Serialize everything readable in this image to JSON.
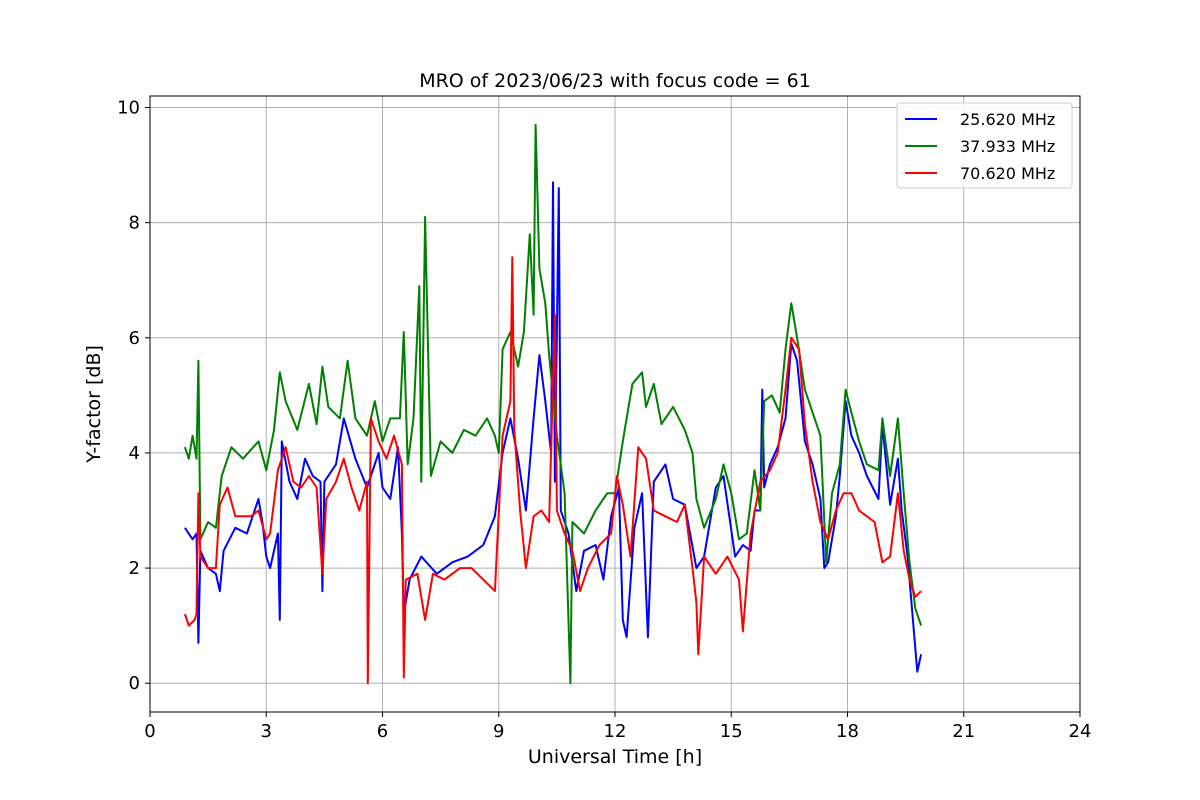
{
  "chart_data": {
    "type": "line",
    "title": "MRO of 2023/06/23 with focus code = 61",
    "xlabel": "Universal Time [h]",
    "ylabel": "Y-factor [dB]",
    "xlim": [
      0,
      24
    ],
    "ylim": [
      -0.5,
      10.2
    ],
    "xticks": [
      0,
      3,
      6,
      9,
      12,
      15,
      18,
      21,
      24
    ],
    "yticks": [
      0,
      2,
      4,
      6,
      8,
      10
    ],
    "grid": true,
    "legend_position": "top-right",
    "series": [
      {
        "name": "25.620 MHz",
        "color": "#0000ff",
        "points": [
          [
            0.9,
            2.7
          ],
          [
            1.1,
            2.5
          ],
          [
            1.2,
            2.6
          ],
          [
            1.25,
            0.7
          ],
          [
            1.3,
            2.3
          ],
          [
            1.5,
            2.0
          ],
          [
            1.7,
            1.9
          ],
          [
            1.8,
            1.6
          ],
          [
            1.9,
            2.3
          ],
          [
            2.2,
            2.7
          ],
          [
            2.5,
            2.6
          ],
          [
            2.8,
            3.2
          ],
          [
            2.9,
            2.8
          ],
          [
            3.0,
            2.2
          ],
          [
            3.1,
            2.0
          ],
          [
            3.3,
            2.6
          ],
          [
            3.35,
            1.1
          ],
          [
            3.4,
            4.2
          ],
          [
            3.6,
            3.5
          ],
          [
            3.8,
            3.2
          ],
          [
            4.0,
            3.9
          ],
          [
            4.2,
            3.6
          ],
          [
            4.4,
            3.5
          ],
          [
            4.45,
            1.6
          ],
          [
            4.5,
            3.5
          ],
          [
            4.8,
            3.8
          ],
          [
            5.0,
            4.6
          ],
          [
            5.3,
            3.9
          ],
          [
            5.6,
            3.4
          ],
          [
            5.9,
            4.0
          ],
          [
            6.0,
            3.4
          ],
          [
            6.2,
            3.2
          ],
          [
            6.4,
            4.1
          ],
          [
            6.5,
            2.6
          ],
          [
            6.55,
            1.2
          ],
          [
            6.7,
            1.8
          ],
          [
            7.0,
            2.2
          ],
          [
            7.4,
            1.9
          ],
          [
            7.8,
            2.1
          ],
          [
            8.2,
            2.2
          ],
          [
            8.6,
            2.4
          ],
          [
            8.9,
            2.9
          ],
          [
            9.1,
            4.0
          ],
          [
            9.3,
            4.6
          ],
          [
            9.5,
            3.9
          ],
          [
            9.7,
            3.0
          ],
          [
            9.9,
            4.6
          ],
          [
            10.05,
            5.7
          ],
          [
            10.2,
            4.9
          ],
          [
            10.35,
            4.0
          ],
          [
            10.4,
            8.7
          ],
          [
            10.45,
            3.5
          ],
          [
            10.55,
            8.6
          ],
          [
            10.6,
            3.0
          ],
          [
            10.8,
            2.6
          ],
          [
            11.0,
            1.6
          ],
          [
            11.2,
            2.3
          ],
          [
            11.5,
            2.4
          ],
          [
            11.7,
            1.8
          ],
          [
            11.9,
            2.9
          ],
          [
            12.1,
            3.4
          ],
          [
            12.2,
            1.1
          ],
          [
            12.3,
            0.8
          ],
          [
            12.5,
            2.7
          ],
          [
            12.7,
            3.3
          ],
          [
            12.85,
            0.8
          ],
          [
            13.0,
            3.5
          ],
          [
            13.3,
            3.8
          ],
          [
            13.5,
            3.2
          ],
          [
            13.8,
            3.1
          ],
          [
            14.1,
            2.0
          ],
          [
            14.3,
            2.2
          ],
          [
            14.6,
            3.4
          ],
          [
            14.8,
            3.6
          ],
          [
            15.1,
            2.2
          ],
          [
            15.3,
            2.4
          ],
          [
            15.5,
            2.3
          ],
          [
            15.6,
            3.0
          ],
          [
            15.75,
            3.0
          ],
          [
            15.8,
            5.1
          ],
          [
            15.85,
            3.4
          ],
          [
            16.0,
            3.8
          ],
          [
            16.2,
            4.1
          ],
          [
            16.4,
            4.6
          ],
          [
            16.55,
            5.9
          ],
          [
            16.7,
            5.6
          ],
          [
            16.9,
            4.2
          ],
          [
            17.1,
            3.8
          ],
          [
            17.3,
            3.2
          ],
          [
            17.4,
            2.0
          ],
          [
            17.5,
            2.1
          ],
          [
            17.7,
            2.9
          ],
          [
            17.8,
            3.6
          ],
          [
            17.95,
            4.9
          ],
          [
            18.1,
            4.3
          ],
          [
            18.3,
            4.0
          ],
          [
            18.5,
            3.6
          ],
          [
            18.8,
            3.2
          ],
          [
            18.9,
            4.5
          ],
          [
            19.1,
            3.1
          ],
          [
            19.3,
            3.9
          ],
          [
            19.4,
            3.0
          ],
          [
            19.55,
            2.2
          ],
          [
            19.7,
            1.0
          ],
          [
            19.8,
            0.2
          ],
          [
            19.9,
            0.5
          ]
        ]
      },
      {
        "name": "37.933 MHz",
        "color": "#008000",
        "points": [
          [
            0.9,
            4.1
          ],
          [
            1.0,
            3.9
          ],
          [
            1.1,
            4.3
          ],
          [
            1.2,
            3.9
          ],
          [
            1.25,
            5.6
          ],
          [
            1.3,
            2.5
          ],
          [
            1.5,
            2.8
          ],
          [
            1.7,
            2.7
          ],
          [
            1.85,
            3.6
          ],
          [
            2.1,
            4.1
          ],
          [
            2.4,
            3.9
          ],
          [
            2.8,
            4.2
          ],
          [
            3.0,
            3.7
          ],
          [
            3.2,
            4.4
          ],
          [
            3.35,
            5.4
          ],
          [
            3.5,
            4.9
          ],
          [
            3.8,
            4.4
          ],
          [
            4.1,
            5.2
          ],
          [
            4.3,
            4.5
          ],
          [
            4.45,
            5.5
          ],
          [
            4.6,
            4.8
          ],
          [
            4.9,
            4.6
          ],
          [
            5.1,
            5.6
          ],
          [
            5.3,
            4.6
          ],
          [
            5.6,
            4.3
          ],
          [
            5.8,
            4.9
          ],
          [
            6.0,
            4.2
          ],
          [
            6.2,
            4.6
          ],
          [
            6.45,
            4.6
          ],
          [
            6.55,
            6.1
          ],
          [
            6.65,
            3.8
          ],
          [
            6.8,
            4.6
          ],
          [
            6.95,
            6.9
          ],
          [
            7.0,
            3.5
          ],
          [
            7.1,
            8.1
          ],
          [
            7.25,
            3.6
          ],
          [
            7.5,
            4.2
          ],
          [
            7.8,
            4.0
          ],
          [
            8.1,
            4.4
          ],
          [
            8.4,
            4.3
          ],
          [
            8.7,
            4.6
          ],
          [
            8.9,
            4.3
          ],
          [
            9.0,
            4.0
          ],
          [
            9.1,
            5.8
          ],
          [
            9.3,
            6.1
          ],
          [
            9.5,
            5.5
          ],
          [
            9.65,
            6.1
          ],
          [
            9.8,
            7.8
          ],
          [
            9.9,
            6.4
          ],
          [
            9.95,
            9.7
          ],
          [
            10.05,
            7.2
          ],
          [
            10.2,
            6.6
          ],
          [
            10.3,
            5.7
          ],
          [
            10.5,
            4.3
          ],
          [
            10.7,
            3.3
          ],
          [
            10.85,
            0.0
          ],
          [
            10.9,
            2.8
          ],
          [
            11.2,
            2.6
          ],
          [
            11.5,
            3.0
          ],
          [
            11.8,
            3.3
          ],
          [
            12.0,
            3.3
          ],
          [
            12.2,
            4.2
          ],
          [
            12.45,
            5.2
          ],
          [
            12.7,
            5.4
          ],
          [
            12.8,
            4.8
          ],
          [
            13.0,
            5.2
          ],
          [
            13.2,
            4.5
          ],
          [
            13.5,
            4.8
          ],
          [
            13.8,
            4.4
          ],
          [
            14.0,
            4.0
          ],
          [
            14.1,
            3.2
          ],
          [
            14.3,
            2.7
          ],
          [
            14.6,
            3.2
          ],
          [
            14.8,
            3.8
          ],
          [
            15.0,
            3.3
          ],
          [
            15.2,
            2.5
          ],
          [
            15.4,
            2.6
          ],
          [
            15.6,
            3.7
          ],
          [
            15.75,
            3.0
          ],
          [
            15.85,
            4.9
          ],
          [
            16.05,
            5.0
          ],
          [
            16.25,
            4.7
          ],
          [
            16.4,
            5.8
          ],
          [
            16.55,
            6.6
          ],
          [
            16.7,
            6.0
          ],
          [
            16.9,
            5.1
          ],
          [
            17.1,
            4.7
          ],
          [
            17.3,
            4.3
          ],
          [
            17.45,
            2.1
          ],
          [
            17.6,
            3.3
          ],
          [
            17.8,
            3.8
          ],
          [
            17.95,
            5.1
          ],
          [
            18.1,
            4.7
          ],
          [
            18.3,
            4.2
          ],
          [
            18.5,
            3.8
          ],
          [
            18.8,
            3.7
          ],
          [
            18.9,
            4.6
          ],
          [
            19.1,
            3.6
          ],
          [
            19.3,
            4.6
          ],
          [
            19.45,
            3.3
          ],
          [
            19.6,
            2.1
          ],
          [
            19.75,
            1.3
          ],
          [
            19.9,
            1.0
          ]
        ]
      },
      {
        "name": "70.620 MHz",
        "color": "#ff0000",
        "points": [
          [
            0.9,
            1.2
          ],
          [
            1.0,
            1.0
          ],
          [
            1.15,
            1.1
          ],
          [
            1.2,
            1.2
          ],
          [
            1.25,
            3.3
          ],
          [
            1.3,
            2.2
          ],
          [
            1.5,
            2.0
          ],
          [
            1.7,
            2.0
          ],
          [
            1.8,
            3.1
          ],
          [
            2.0,
            3.4
          ],
          [
            2.2,
            2.9
          ],
          [
            2.6,
            2.9
          ],
          [
            2.8,
            3.0
          ],
          [
            3.0,
            2.5
          ],
          [
            3.1,
            2.6
          ],
          [
            3.3,
            3.7
          ],
          [
            3.5,
            4.1
          ],
          [
            3.7,
            3.5
          ],
          [
            3.9,
            3.4
          ],
          [
            4.1,
            3.6
          ],
          [
            4.3,
            3.4
          ],
          [
            4.45,
            1.9
          ],
          [
            4.55,
            3.2
          ],
          [
            4.8,
            3.5
          ],
          [
            5.0,
            3.9
          ],
          [
            5.2,
            3.4
          ],
          [
            5.4,
            3.0
          ],
          [
            5.6,
            3.5
          ],
          [
            5.62,
            0.0
          ],
          [
            5.7,
            4.6
          ],
          [
            5.9,
            4.2
          ],
          [
            6.1,
            3.9
          ],
          [
            6.3,
            4.3
          ],
          [
            6.5,
            3.8
          ],
          [
            6.55,
            0.1
          ],
          [
            6.6,
            1.8
          ],
          [
            6.9,
            1.9
          ],
          [
            7.1,
            1.1
          ],
          [
            7.3,
            1.9
          ],
          [
            7.6,
            1.8
          ],
          [
            8.0,
            2.0
          ],
          [
            8.3,
            2.0
          ],
          [
            8.6,
            1.8
          ],
          [
            8.9,
            1.6
          ],
          [
            9.1,
            4.3
          ],
          [
            9.3,
            4.9
          ],
          [
            9.35,
            7.4
          ],
          [
            9.4,
            4.4
          ],
          [
            9.55,
            3.0
          ],
          [
            9.7,
            2.0
          ],
          [
            9.9,
            2.9
          ],
          [
            10.1,
            3.0
          ],
          [
            10.3,
            2.8
          ],
          [
            10.45,
            6.4
          ],
          [
            10.5,
            3.0
          ],
          [
            10.7,
            2.6
          ],
          [
            10.9,
            2.3
          ],
          [
            11.1,
            1.6
          ],
          [
            11.3,
            2.0
          ],
          [
            11.6,
            2.4
          ],
          [
            11.9,
            2.6
          ],
          [
            12.05,
            3.6
          ],
          [
            12.2,
            3.1
          ],
          [
            12.4,
            2.2
          ],
          [
            12.6,
            4.1
          ],
          [
            12.8,
            3.9
          ],
          [
            13.0,
            3.0
          ],
          [
            13.3,
            2.9
          ],
          [
            13.6,
            2.8
          ],
          [
            13.8,
            3.1
          ],
          [
            14.0,
            2.0
          ],
          [
            14.1,
            1.4
          ],
          [
            14.15,
            0.5
          ],
          [
            14.3,
            2.2
          ],
          [
            14.6,
            1.9
          ],
          [
            14.9,
            2.2
          ],
          [
            15.2,
            1.8
          ],
          [
            15.3,
            0.9
          ],
          [
            15.5,
            2.6
          ],
          [
            15.75,
            3.5
          ],
          [
            16.0,
            3.7
          ],
          [
            16.2,
            4.0
          ],
          [
            16.4,
            5.1
          ],
          [
            16.55,
            6.0
          ],
          [
            16.75,
            5.8
          ],
          [
            16.9,
            4.5
          ],
          [
            17.1,
            3.5
          ],
          [
            17.3,
            2.8
          ],
          [
            17.5,
            2.5
          ],
          [
            17.7,
            3.0
          ],
          [
            17.9,
            3.3
          ],
          [
            18.1,
            3.3
          ],
          [
            18.3,
            3.0
          ],
          [
            18.5,
            2.9
          ],
          [
            18.7,
            2.8
          ],
          [
            18.9,
            2.1
          ],
          [
            19.1,
            2.2
          ],
          [
            19.3,
            3.3
          ],
          [
            19.45,
            2.3
          ],
          [
            19.6,
            1.8
          ],
          [
            19.75,
            1.5
          ],
          [
            19.9,
            1.6
          ]
        ]
      }
    ]
  }
}
